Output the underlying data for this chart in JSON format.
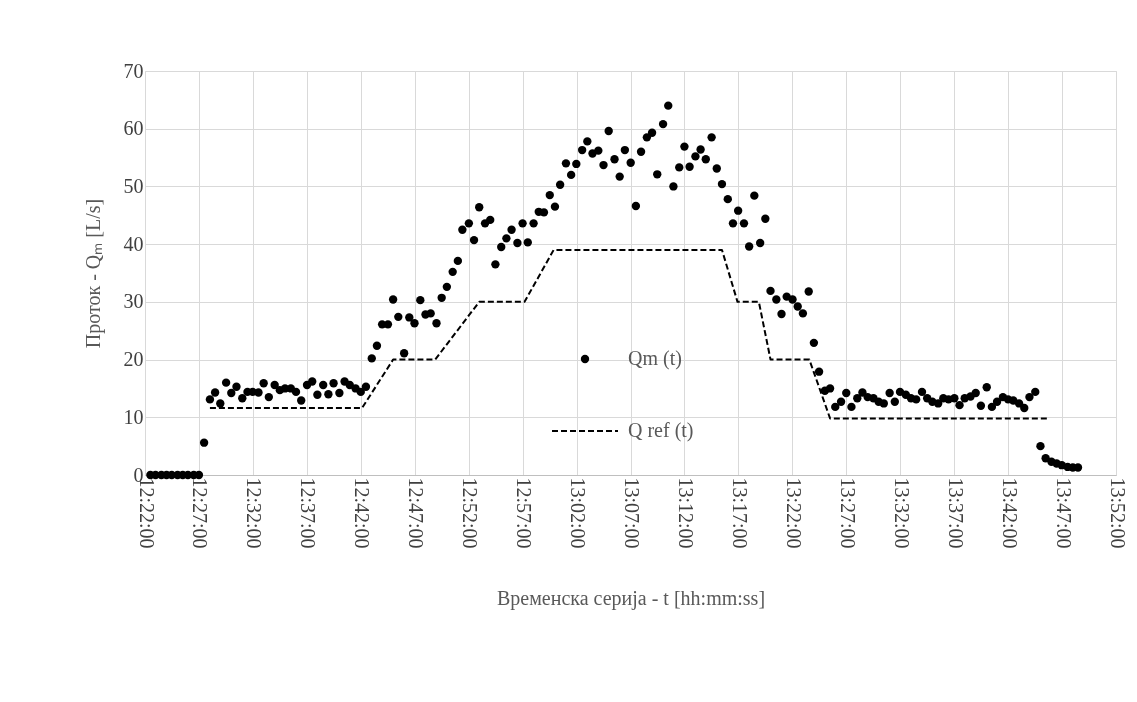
{
  "chart_data": {
    "type": "scatter",
    "xlabel": "Временска серија - t [hh:mm:ss]",
    "ylabel": "Проток - Qₘ [L/s]",
    "xlim": [
      12.3667,
      13.8667
    ],
    "xticks": [
      {
        "value": 12.3667,
        "label": "12:22:00"
      },
      {
        "value": 12.45,
        "label": "12:27:00"
      },
      {
        "value": 12.5333,
        "label": "12:32:00"
      },
      {
        "value": 12.6167,
        "label": "12:37:00"
      },
      {
        "value": 12.7,
        "label": "12:42:00"
      },
      {
        "value": 12.7833,
        "label": "12:47:00"
      },
      {
        "value": 12.8667,
        "label": "12:52:00"
      },
      {
        "value": 12.95,
        "label": "12:57:00"
      },
      {
        "value": 13.0333,
        "label": "13:02:00"
      },
      {
        "value": 13.1167,
        "label": "13:07:00"
      },
      {
        "value": 13.2,
        "label": "13:12:00"
      },
      {
        "value": 13.2833,
        "label": "13:17:00"
      },
      {
        "value": 13.3667,
        "label": "13:22:00"
      },
      {
        "value": 13.45,
        "label": "13:27:00"
      },
      {
        "value": 13.5333,
        "label": "13:32:00"
      },
      {
        "value": 13.6167,
        "label": "13:37:00"
      },
      {
        "value": 13.7,
        "label": "13:42:00"
      },
      {
        "value": 13.7833,
        "label": "13:47:00"
      },
      {
        "value": 13.8667,
        "label": "13:52:00"
      }
    ],
    "ylim": [
      0,
      70
    ],
    "yticks": [
      0,
      10,
      20,
      30,
      40,
      50,
      60,
      70
    ],
    "grid": true,
    "legend": "bottom",
    "series": [
      {
        "name": "Qm (t)",
        "marker": "circle",
        "color": "#000000",
        "x": [
          12.375,
          12.383,
          12.392,
          12.4,
          12.408,
          12.417,
          12.425,
          12.433,
          12.442,
          12.45,
          12.458,
          12.467,
          12.475,
          12.483,
          12.492,
          12.5,
          12.508,
          12.517,
          12.525,
          12.533,
          12.542,
          12.55,
          12.558,
          12.567,
          12.575,
          12.583,
          12.592,
          12.6,
          12.608,
          12.617,
          12.625,
          12.633,
          12.642,
          12.65,
          12.658,
          12.667,
          12.675,
          12.683,
          12.692,
          12.7,
          12.708,
          12.717,
          12.725,
          12.733,
          12.742,
          12.75,
          12.758,
          12.767,
          12.775,
          12.783,
          12.792,
          12.8,
          12.808,
          12.817,
          12.825,
          12.833,
          12.842,
          12.85,
          12.857,
          12.867,
          12.875,
          12.883,
          12.892,
          12.9,
          12.908,
          12.917,
          12.925,
          12.933,
          12.942,
          12.95,
          12.958,
          12.967,
          12.975,
          12.983,
          12.992,
          13.0,
          13.008,
          13.017,
          13.025,
          13.033,
          13.042,
          13.05,
          13.058,
          13.067,
          13.075,
          13.083,
          13.092,
          13.1,
          13.108,
          13.117,
          13.125,
          13.133,
          13.142,
          13.15,
          13.158,
          13.167,
          13.175,
          13.183,
          13.192,
          13.2,
          13.208,
          13.217,
          13.225,
          13.233,
          13.242,
          13.25,
          13.258,
          13.267,
          13.275,
          13.283,
          13.292,
          13.3,
          13.308,
          13.317,
          13.325,
          13.333,
          13.342,
          13.35,
          13.358,
          13.367,
          13.375,
          13.383,
          13.392,
          13.4,
          13.408,
          13.417,
          13.425,
          13.433,
          13.442,
          13.45,
          13.458,
          13.467,
          13.475,
          13.483,
          13.492,
          13.5,
          13.508,
          13.517,
          13.525,
          13.533,
          13.542,
          13.55,
          13.558,
          13.567,
          13.575,
          13.583,
          13.592,
          13.6,
          13.608,
          13.617,
          13.625,
          13.633,
          13.642,
          13.65,
          13.658,
          13.667,
          13.675,
          13.683,
          13.692,
          13.7,
          13.708,
          13.717,
          13.725,
          13.733,
          13.742,
          13.75,
          13.758,
          13.767,
          13.775,
          13.783,
          13.792,
          13.8,
          13.808
        ],
        "values": [
          0,
          0,
          0,
          0,
          0,
          0,
          0,
          0,
          0,
          0,
          5.6,
          13.1,
          14.3,
          12.4,
          16.0,
          14.2,
          15.3,
          13.3,
          14.4,
          14.4,
          14.3,
          15.9,
          13.5,
          15.6,
          14.7,
          15.0,
          15.0,
          14.4,
          12.9,
          15.6,
          16.2,
          13.9,
          15.6,
          14.0,
          15.9,
          14.2,
          16.2,
          15.6,
          15.0,
          14.4,
          15.3,
          20.2,
          22.4,
          26.1,
          26.1,
          30.4,
          27.4,
          21.1,
          27.3,
          26.3,
          30.3,
          27.8,
          28.0,
          26.3,
          30.7,
          32.6,
          35.2,
          37.1,
          42.5,
          43.6,
          40.7,
          46.4,
          43.6,
          44.2,
          36.5,
          39.5,
          41.0,
          42.5,
          40.2,
          43.6,
          40.3,
          43.6,
          45.6,
          45.5,
          48.5,
          46.5,
          50.3,
          54.0,
          52.0,
          53.9,
          56.3,
          57.8,
          55.7,
          56.2,
          53.7,
          59.6,
          54.7,
          51.7,
          56.3,
          54.1,
          46.6,
          56.0,
          58.5,
          59.3,
          52.1,
          60.8,
          64.0,
          50.0,
          53.3,
          56.9,
          53.4,
          55.2,
          56.4,
          54.7,
          58.5,
          53.1,
          50.4,
          47.8,
          43.6,
          45.8,
          43.6,
          39.6,
          48.4,
          40.2,
          44.4,
          31.9,
          30.4,
          27.9,
          30.9,
          30.4,
          29.2,
          28.0,
          31.8,
          22.9,
          17.9,
          14.6,
          15.0,
          11.8,
          12.7,
          14.2,
          11.8,
          13.3,
          14.3,
          13.5,
          13.3,
          12.7,
          12.4,
          14.2,
          12.7,
          14.4,
          13.9,
          13.3,
          13.1,
          14.4,
          13.3,
          12.7,
          12.4,
          13.3,
          13.1,
          13.3,
          12.1,
          13.3,
          13.6,
          14.2,
          12.0,
          15.2,
          11.8,
          12.7,
          13.5,
          13.1,
          12.9,
          12.4,
          11.6,
          13.5,
          14.4,
          5.0,
          2.9,
          2.3,
          2.0,
          1.7,
          1.4,
          1.3,
          1.3
        ]
      },
      {
        "name": "Q ref (t)",
        "type": "line",
        "line_style": "dashed",
        "color": "#000000",
        "x": [
          12.467,
          12.702,
          12.75,
          12.815,
          12.883,
          12.953,
          12.998,
          13.258,
          13.282,
          13.315,
          13.333,
          13.393,
          13.425,
          13.76
        ],
        "values": [
          11.6,
          11.6,
          20,
          20,
          30,
          30,
          39,
          39,
          30,
          30,
          20,
          20,
          9.8,
          9.8
        ]
      }
    ]
  }
}
